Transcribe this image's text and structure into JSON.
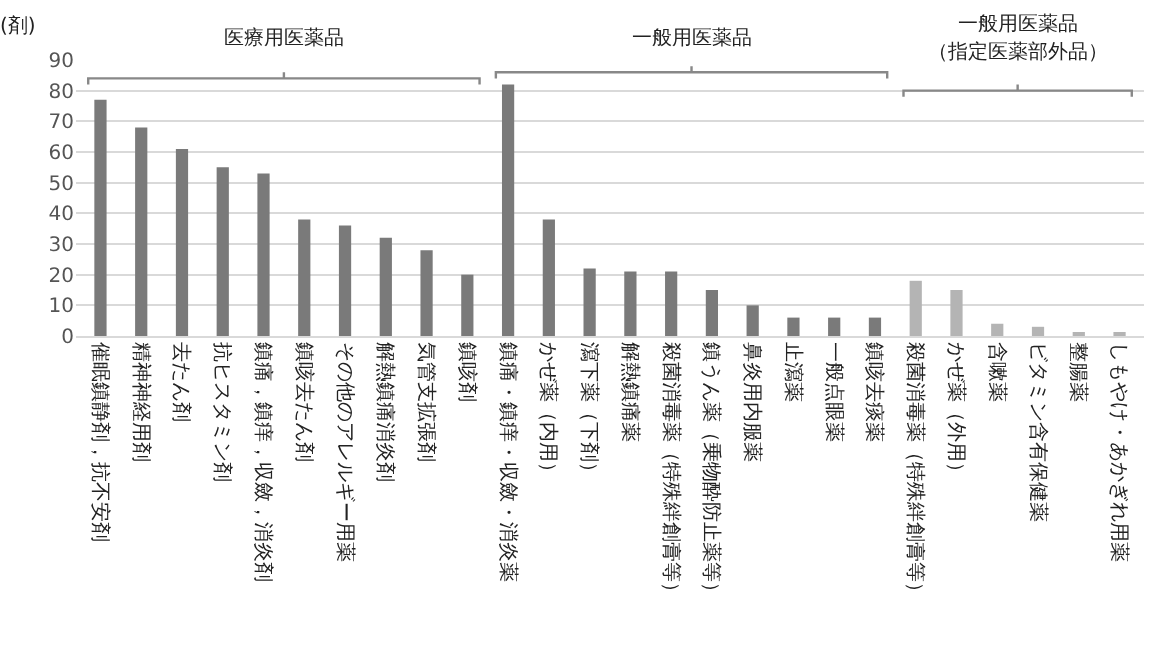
{
  "chart_data": {
    "type": "bar",
    "ylabel": "(剤)",
    "categories": [
      "催眠鎮静剤，抗不安剤",
      "精神神経用剤",
      "去たん剤",
      "抗ヒスタミン剤",
      "鎮痛，鎮痒，収斂，消炎剤",
      "鎮咳去たん剤",
      "その他のアレルギー用薬",
      "解熱鎮痛消炎剤",
      "気管支拡張剤",
      "鎮咳剤",
      "鎮痛・鎮痒・収斂・消炎薬",
      "かぜ薬（内用）",
      "瀉下薬（下剤）",
      "解熱鎮痛薬",
      "殺菌消毒薬（特殊絆創膏等）",
      "鎮うん薬（乗物酔防止薬等）",
      "鼻炎用内服薬",
      "止瀉薬",
      "一般点眼薬",
      "鎮咳去痰薬",
      "殺菌消毒薬（特殊絆創膏等）",
      "かぜ薬（外用）",
      "含嗽薬",
      "ビタミン含有保健薬",
      "整腸薬",
      "しもやけ・あかぎれ用薬"
    ],
    "values": [
      77,
      68,
      61,
      55,
      53,
      38,
      36,
      32,
      28,
      20,
      82,
      38,
      22,
      21,
      21,
      15,
      10,
      6,
      6,
      6,
      18,
      15,
      4,
      3,
      1,
      1
    ],
    "colors": [
      "#7a7a7a",
      "#7a7a7a",
      "#7a7a7a",
      "#7a7a7a",
      "#7a7a7a",
      "#7a7a7a",
      "#7a7a7a",
      "#7a7a7a",
      "#7a7a7a",
      "#7a7a7a",
      "#7a7a7a",
      "#7a7a7a",
      "#7a7a7a",
      "#7a7a7a",
      "#7a7a7a",
      "#7a7a7a",
      "#7a7a7a",
      "#7a7a7a",
      "#7a7a7a",
      "#7a7a7a",
      "#b4b4b4",
      "#b4b4b4",
      "#b4b4b4",
      "#b4b4b4",
      "#b4b4b4",
      "#b4b4b4"
    ],
    "ylim": [
      0,
      90
    ],
    "yticks": [
      0,
      10,
      20,
      30,
      40,
      50,
      60,
      70,
      80,
      90
    ],
    "grid": "y",
    "annotations": [
      "医療用医薬品",
      "一般用医薬品",
      "一般用医薬品",
      "（指定医薬部外品）"
    ]
  }
}
